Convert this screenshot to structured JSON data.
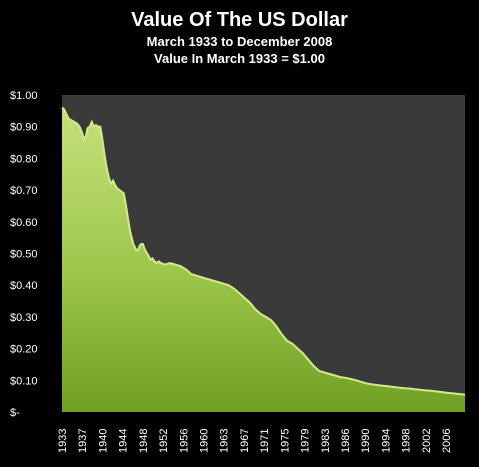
{
  "chart_data": {
    "type": "area",
    "title": "Value Of The US Dollar",
    "subtitle_1": "March 1933 to December 2008",
    "subtitle_2": "Value In March 1933 = $1.00",
    "xlabel": "",
    "ylabel": "",
    "ylim": [
      0,
      1.0
    ],
    "xlim": [
      1933.2,
      2008.95
    ],
    "grid": false,
    "legend": "none",
    "y_ticks": [
      {
        "value": 0.0,
        "label": "$-"
      },
      {
        "value": 0.1,
        "label": "$0.10"
      },
      {
        "value": 0.2,
        "label": "$0.20"
      },
      {
        "value": 0.3,
        "label": "$0.30"
      },
      {
        "value": 0.4,
        "label": "$0.40"
      },
      {
        "value": 0.5,
        "label": "$0.50"
      },
      {
        "value": 0.6,
        "label": "$0.60"
      },
      {
        "value": 0.7,
        "label": "$0.70"
      },
      {
        "value": 0.8,
        "label": "$0.80"
      },
      {
        "value": 0.9,
        "label": "$0.90"
      },
      {
        "value": 1.0,
        "label": "$1.00"
      }
    ],
    "x_ticks": [
      {
        "value": 1933.2,
        "label": "1933"
      },
      {
        "value": 1937.0,
        "label": "1937"
      },
      {
        "value": 1940.8,
        "label": "1940"
      },
      {
        "value": 1944.6,
        "label": "1944"
      },
      {
        "value": 1948.4,
        "label": "1948"
      },
      {
        "value": 1952.2,
        "label": "1952"
      },
      {
        "value": 1956.0,
        "label": "1956"
      },
      {
        "value": 1959.8,
        "label": "1960"
      },
      {
        "value": 1963.6,
        "label": "1963"
      },
      {
        "value": 1967.4,
        "label": "1967"
      },
      {
        "value": 1971.2,
        "label": "1971"
      },
      {
        "value": 1975.0,
        "label": "1975"
      },
      {
        "value": 1978.8,
        "label": "1979"
      },
      {
        "value": 1982.6,
        "label": "1983"
      },
      {
        "value": 1986.4,
        "label": "1986"
      },
      {
        "value": 1990.2,
        "label": "1990"
      },
      {
        "value": 1994.0,
        "label": "1994"
      },
      {
        "value": 1997.8,
        "label": "1998"
      },
      {
        "value": 2001.6,
        "label": "2002"
      },
      {
        "value": 2005.4,
        "label": "2006"
      }
    ],
    "series": [
      {
        "x": [
          1933.2,
          1933.6,
          1934.0,
          1934.5,
          1935.0,
          1935.5,
          1936.0,
          1936.5,
          1937.0,
          1937.3,
          1937.7,
          1938.0,
          1938.4,
          1938.8,
          1939.2,
          1939.6,
          1940.0,
          1940.4,
          1940.8,
          1941.2,
          1941.6,
          1942.0,
          1942.4,
          1942.8,
          1943.2,
          1943.6,
          1944.0,
          1944.4,
          1944.8,
          1945.2,
          1945.6,
          1946.0,
          1946.3,
          1946.6,
          1946.9,
          1947.2,
          1947.5,
          1947.8,
          1948.1,
          1948.4,
          1948.7,
          1949.0,
          1949.4,
          1949.8,
          1950.2,
          1950.6,
          1951.0,
          1951.4,
          1951.8,
          1952.5,
          1953.5,
          1954.5,
          1955.5,
          1956.5,
          1957.5,
          1958.5,
          1959.5,
          1960.5,
          1961.5,
          1962.5,
          1963.5,
          1964.5,
          1965.5,
          1966.5,
          1967.5,
          1968.5,
          1969.5,
          1970.5,
          1971.5,
          1972.5,
          1973.5,
          1974.5,
          1975.5,
          1976.5,
          1977.5,
          1978.5,
          1979.5,
          1980.5,
          1981.5,
          1982.5,
          1983.5,
          1984.5,
          1985.5,
          1986.5,
          1987.5,
          1988.5,
          1989.5,
          1990.5,
          1991.5,
          1992.5,
          1993.5,
          1994.5,
          1995.5,
          1996.5,
          1997.5,
          1998.5,
          1999.5,
          2000.5,
          2001.5,
          2002.5,
          2003.5,
          2004.5,
          2005.5,
          2006.5,
          2007.5,
          2008.95
        ],
        "values": [
          0.96,
          0.955,
          0.94,
          0.925,
          0.92,
          0.915,
          0.91,
          0.9,
          0.88,
          0.86,
          0.87,
          0.895,
          0.9,
          0.915,
          0.9,
          0.905,
          0.9,
          0.9,
          0.86,
          0.81,
          0.77,
          0.74,
          0.72,
          0.73,
          0.715,
          0.705,
          0.7,
          0.695,
          0.69,
          0.655,
          0.61,
          0.57,
          0.55,
          0.53,
          0.52,
          0.51,
          0.51,
          0.525,
          0.53,
          0.53,
          0.515,
          0.505,
          0.495,
          0.48,
          0.485,
          0.475,
          0.47,
          0.475,
          0.47,
          0.465,
          0.47,
          0.465,
          0.46,
          0.45,
          0.435,
          0.43,
          0.425,
          0.42,
          0.415,
          0.41,
          0.405,
          0.4,
          0.39,
          0.375,
          0.36,
          0.345,
          0.325,
          0.31,
          0.3,
          0.29,
          0.27,
          0.245,
          0.225,
          0.215,
          0.2,
          0.185,
          0.165,
          0.145,
          0.13,
          0.125,
          0.12,
          0.115,
          0.11,
          0.108,
          0.104,
          0.1,
          0.095,
          0.09,
          0.087,
          0.085,
          0.083,
          0.081,
          0.079,
          0.077,
          0.075,
          0.074,
          0.072,
          0.07,
          0.068,
          0.067,
          0.065,
          0.063,
          0.061,
          0.059,
          0.057,
          0.055
        ]
      }
    ],
    "colors": {
      "background": "#000000",
      "plot_area": "#3a3a3a",
      "fill_light": "#b9d96b",
      "fill_dark": "#6a9b1f",
      "fill_edge": "#d3ea8c",
      "text": "#ffffff"
    }
  }
}
